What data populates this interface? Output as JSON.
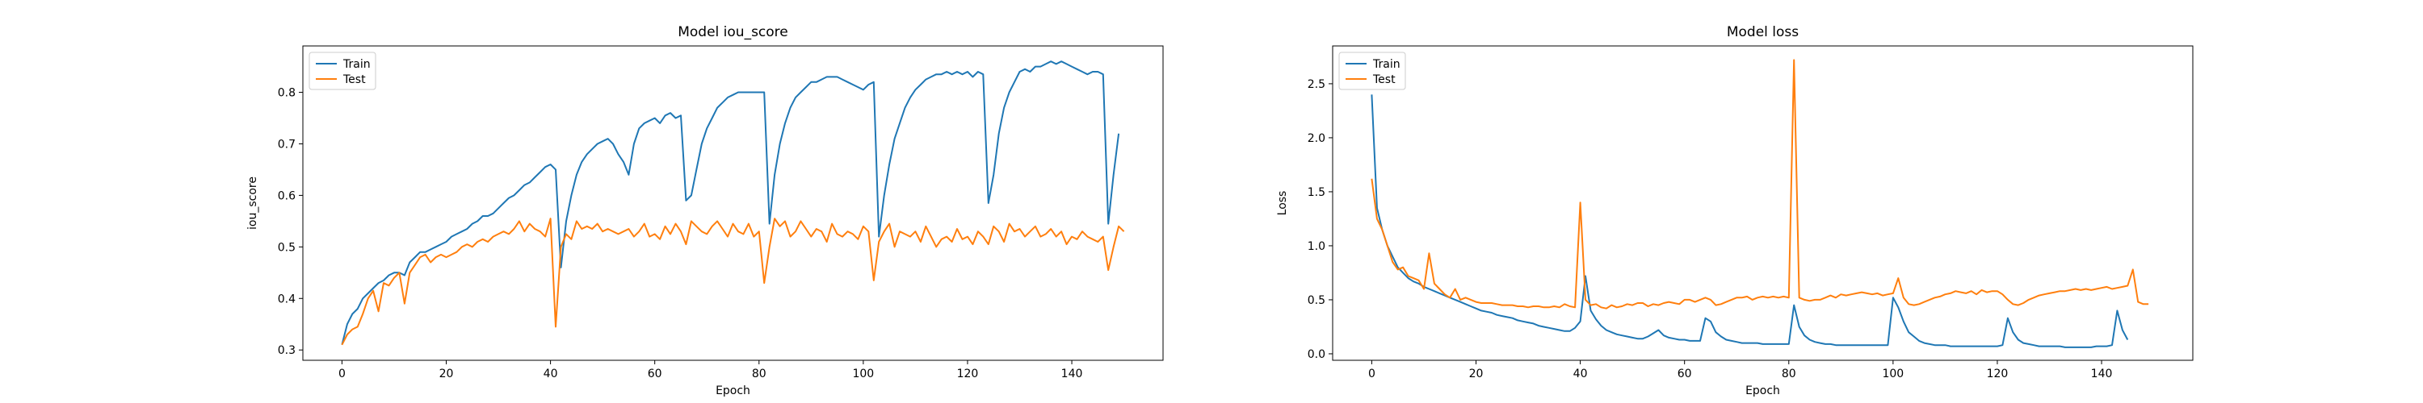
{
  "colors": {
    "train": "#1f77b4",
    "test": "#ff7f0e"
  },
  "chart_data": [
    {
      "type": "line",
      "title": "Model iou_score",
      "xlabel": "Epoch",
      "ylabel": "iou_score",
      "xlim": [
        -7.5,
        157.5
      ],
      "ylim": [
        0.28,
        0.89
      ],
      "xticks": [
        0,
        20,
        40,
        60,
        80,
        100,
        120,
        140
      ],
      "yticks": [
        0.3,
        0.4,
        0.5,
        0.6,
        0.7,
        0.8
      ],
      "ytick_labels": [
        "0.3",
        "0.4",
        "0.5",
        "0.6",
        "0.7",
        "0.8"
      ],
      "legend": "upper-left",
      "grid": false,
      "series": [
        {
          "name": "Train",
          "color": "#1f77b4",
          "values": [
            0.31,
            0.35,
            0.37,
            0.38,
            0.4,
            0.41,
            0.42,
            0.43,
            0.435,
            0.445,
            0.45,
            0.45,
            0.445,
            0.47,
            0.48,
            0.49,
            0.49,
            0.495,
            0.5,
            0.505,
            0.51,
            0.52,
            0.525,
            0.53,
            0.535,
            0.545,
            0.55,
            0.56,
            0.56,
            0.565,
            0.575,
            0.585,
            0.595,
            0.6,
            0.61,
            0.62,
            0.625,
            0.635,
            0.645,
            0.655,
            0.66,
            0.65,
            0.46,
            0.55,
            0.6,
            0.64,
            0.665,
            0.68,
            0.69,
            0.7,
            0.705,
            0.71,
            0.7,
            0.68,
            0.665,
            0.64,
            0.7,
            0.73,
            0.74,
            0.745,
            0.75,
            0.74,
            0.755,
            0.76,
            0.75,
            0.755,
            0.59,
            0.6,
            0.65,
            0.7,
            0.73,
            0.75,
            0.77,
            0.78,
            0.79,
            0.795,
            0.8,
            0.8,
            0.8,
            0.8,
            0.8,
            0.8,
            0.545,
            0.64,
            0.7,
            0.74,
            0.77,
            0.79,
            0.8,
            0.81,
            0.82,
            0.82,
            0.825,
            0.83,
            0.83,
            0.83,
            0.825,
            0.82,
            0.815,
            0.81,
            0.805,
            0.815,
            0.82,
            0.52,
            0.6,
            0.66,
            0.71,
            0.74,
            0.77,
            0.79,
            0.805,
            0.815,
            0.825,
            0.83,
            0.835,
            0.835,
            0.84,
            0.835,
            0.84,
            0.835,
            0.84,
            0.83,
            0.84,
            0.835,
            0.585,
            0.64,
            0.72,
            0.77,
            0.8,
            0.82,
            0.84,
            0.845,
            0.84,
            0.85,
            0.85,
            0.855,
            0.86,
            0.855,
            0.86,
            0.855,
            0.85,
            0.845,
            0.84,
            0.835,
            0.84,
            0.84,
            0.835,
            0.545,
            0.64,
            0.72
          ]
        },
        {
          "name": "Test",
          "color": "#ff7f0e",
          "values": [
            0.31,
            0.33,
            0.34,
            0.345,
            0.37,
            0.4,
            0.415,
            0.375,
            0.43,
            0.425,
            0.44,
            0.45,
            0.39,
            0.45,
            0.465,
            0.48,
            0.485,
            0.47,
            0.48,
            0.485,
            0.48,
            0.485,
            0.49,
            0.5,
            0.505,
            0.5,
            0.51,
            0.515,
            0.51,
            0.52,
            0.525,
            0.53,
            0.525,
            0.535,
            0.55,
            0.53,
            0.545,
            0.535,
            0.53,
            0.52,
            0.555,
            0.345,
            0.5,
            0.525,
            0.515,
            0.55,
            0.535,
            0.54,
            0.535,
            0.545,
            0.53,
            0.535,
            0.53,
            0.525,
            0.53,
            0.535,
            0.52,
            0.53,
            0.545,
            0.52,
            0.525,
            0.515,
            0.54,
            0.525,
            0.545,
            0.53,
            0.505,
            0.55,
            0.54,
            0.53,
            0.525,
            0.54,
            0.55,
            0.535,
            0.52,
            0.545,
            0.53,
            0.525,
            0.545,
            0.52,
            0.53,
            0.43,
            0.5,
            0.555,
            0.54,
            0.55,
            0.52,
            0.53,
            0.55,
            0.535,
            0.52,
            0.535,
            0.53,
            0.51,
            0.545,
            0.525,
            0.52,
            0.53,
            0.525,
            0.515,
            0.54,
            0.53,
            0.435,
            0.51,
            0.53,
            0.545,
            0.5,
            0.53,
            0.525,
            0.52,
            0.53,
            0.51,
            0.54,
            0.52,
            0.5,
            0.515,
            0.52,
            0.51,
            0.535,
            0.515,
            0.52,
            0.505,
            0.53,
            0.52,
            0.505,
            0.54,
            0.53,
            0.51,
            0.545,
            0.53,
            0.535,
            0.52,
            0.53,
            0.54,
            0.52,
            0.525,
            0.535,
            0.52,
            0.53,
            0.505,
            0.52,
            0.515,
            0.53,
            0.52,
            0.515,
            0.51,
            0.52,
            0.455,
            0.5,
            0.54,
            0.53
          ]
        }
      ]
    },
    {
      "type": "line",
      "title": "Model loss",
      "xlabel": "Epoch",
      "ylabel": "Loss",
      "xlim": [
        -7.5,
        157.5
      ],
      "ylim": [
        -0.06,
        2.85
      ],
      "xticks": [
        0,
        20,
        40,
        60,
        80,
        100,
        120,
        140
      ],
      "yticks": [
        0.0,
        0.5,
        1.0,
        1.5,
        2.0,
        2.5
      ],
      "ytick_labels": [
        "0.0",
        "0.5",
        "1.0",
        "1.5",
        "2.0",
        "2.5"
      ],
      "legend": "upper-left",
      "grid": false,
      "series": [
        {
          "name": "Train",
          "color": "#1f77b4",
          "values": [
            2.4,
            1.35,
            1.15,
            1.0,
            0.9,
            0.8,
            0.75,
            0.7,
            0.67,
            0.65,
            0.62,
            0.6,
            0.58,
            0.56,
            0.54,
            0.52,
            0.5,
            0.48,
            0.46,
            0.44,
            0.42,
            0.4,
            0.39,
            0.38,
            0.36,
            0.35,
            0.34,
            0.33,
            0.31,
            0.3,
            0.29,
            0.28,
            0.26,
            0.25,
            0.24,
            0.23,
            0.22,
            0.21,
            0.21,
            0.24,
            0.3,
            0.72,
            0.4,
            0.32,
            0.26,
            0.22,
            0.2,
            0.18,
            0.17,
            0.16,
            0.15,
            0.14,
            0.14,
            0.16,
            0.19,
            0.22,
            0.17,
            0.15,
            0.14,
            0.13,
            0.13,
            0.12,
            0.12,
            0.12,
            0.33,
            0.3,
            0.2,
            0.16,
            0.13,
            0.12,
            0.11,
            0.1,
            0.1,
            0.1,
            0.1,
            0.09,
            0.09,
            0.09,
            0.09,
            0.09,
            0.09,
            0.45,
            0.25,
            0.17,
            0.13,
            0.11,
            0.1,
            0.09,
            0.09,
            0.08,
            0.08,
            0.08,
            0.08,
            0.08,
            0.08,
            0.08,
            0.08,
            0.08,
            0.08,
            0.08,
            0.52,
            0.43,
            0.3,
            0.2,
            0.16,
            0.12,
            0.1,
            0.09,
            0.08,
            0.08,
            0.08,
            0.07,
            0.07,
            0.07,
            0.07,
            0.07,
            0.07,
            0.07,
            0.07,
            0.07,
            0.07,
            0.08,
            0.33,
            0.2,
            0.13,
            0.1,
            0.09,
            0.08,
            0.07,
            0.07,
            0.07,
            0.07,
            0.07,
            0.06,
            0.06,
            0.06,
            0.06,
            0.06,
            0.06,
            0.07,
            0.07,
            0.07,
            0.08,
            0.4,
            0.22,
            0.13
          ]
        },
        {
          "name": "Test",
          "color": "#ff7f0e",
          "values": [
            1.62,
            1.25,
            1.15,
            1.0,
            0.85,
            0.78,
            0.8,
            0.72,
            0.7,
            0.68,
            0.6,
            0.93,
            0.65,
            0.6,
            0.55,
            0.52,
            0.6,
            0.5,
            0.52,
            0.5,
            0.48,
            0.47,
            0.47,
            0.47,
            0.46,
            0.45,
            0.45,
            0.45,
            0.44,
            0.44,
            0.43,
            0.44,
            0.44,
            0.43,
            0.43,
            0.44,
            0.43,
            0.46,
            0.44,
            0.43,
            1.4,
            0.5,
            0.45,
            0.46,
            0.43,
            0.42,
            0.45,
            0.43,
            0.44,
            0.46,
            0.45,
            0.47,
            0.47,
            0.44,
            0.46,
            0.45,
            0.47,
            0.48,
            0.47,
            0.46,
            0.5,
            0.5,
            0.48,
            0.5,
            0.52,
            0.5,
            0.45,
            0.46,
            0.48,
            0.5,
            0.52,
            0.52,
            0.53,
            0.5,
            0.52,
            0.53,
            0.52,
            0.53,
            0.52,
            0.53,
            0.52,
            2.72,
            0.52,
            0.5,
            0.49,
            0.5,
            0.5,
            0.52,
            0.54,
            0.52,
            0.55,
            0.54,
            0.55,
            0.56,
            0.57,
            0.56,
            0.55,
            0.56,
            0.54,
            0.55,
            0.56,
            0.7,
            0.52,
            0.46,
            0.45,
            0.46,
            0.48,
            0.5,
            0.52,
            0.53,
            0.55,
            0.56,
            0.58,
            0.57,
            0.56,
            0.58,
            0.55,
            0.59,
            0.57,
            0.58,
            0.58,
            0.55,
            0.5,
            0.46,
            0.45,
            0.47,
            0.5,
            0.52,
            0.54,
            0.55,
            0.56,
            0.57,
            0.58,
            0.58,
            0.59,
            0.6,
            0.59,
            0.6,
            0.59,
            0.6,
            0.61,
            0.62,
            0.6,
            0.61,
            0.62,
            0.63,
            0.78,
            0.48,
            0.46,
            0.46
          ]
        }
      ]
    }
  ]
}
